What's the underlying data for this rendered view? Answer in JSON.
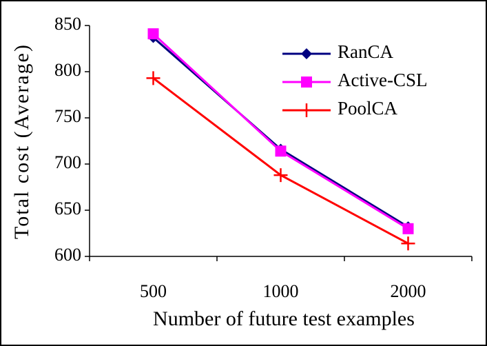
{
  "chart_data": {
    "type": "line",
    "x_label": "Number of future test examples",
    "y_label": "Total cost (Average)",
    "categories": [
      "500",
      "1000",
      "2000"
    ],
    "series": [
      {
        "name": "RanCA",
        "color": "#000080",
        "marker": "diamond",
        "values": [
          837,
          716,
          632
        ]
      },
      {
        "name": "Active-CSL",
        "color": "#ff00ff",
        "marker": "square",
        "values": [
          841,
          714,
          630
        ]
      },
      {
        "name": "PoolCA",
        "color": "#ff0000",
        "marker": "plus",
        "values": [
          793,
          688,
          614
        ]
      }
    ],
    "ylim": [
      600,
      850
    ],
    "yticks": [
      600,
      650,
      700,
      750,
      800,
      850
    ],
    "grid": false,
    "legend": "upper right"
  }
}
